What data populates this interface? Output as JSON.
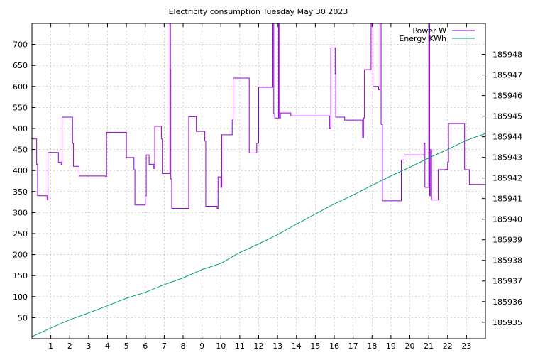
{
  "chart_data": {
    "type": "line",
    "title": "Electricity consumption Tuesday May 30 2023",
    "xlabel": "",
    "ylabel": "",
    "xlim": [
      0,
      24
    ],
    "ylim": [
      0,
      750
    ],
    "y2lim": [
      185934.2,
      185949.5
    ],
    "x_ticks": [
      1,
      2,
      3,
      4,
      5,
      6,
      7,
      8,
      9,
      10,
      11,
      12,
      13,
      14,
      15,
      16,
      17,
      18,
      19,
      20,
      21,
      22,
      23
    ],
    "y_ticks": [
      50,
      100,
      150,
      200,
      250,
      300,
      350,
      400,
      450,
      500,
      550,
      600,
      650,
      700
    ],
    "y2_ticks": [
      185935,
      185936,
      185937,
      185938,
      185939,
      185940,
      185941,
      185942,
      185943,
      185944,
      185945,
      185946,
      185947,
      185948
    ],
    "grid": true,
    "legend_position": "top-right",
    "series": [
      {
        "name": "Power W",
        "axis": "left",
        "color": "#9400d3",
        "step": true,
        "points": [
          [
            0,
            475
          ],
          [
            0.25,
            415
          ],
          [
            0.3,
            340
          ],
          [
            0.8,
            330
          ],
          [
            0.85,
            443
          ],
          [
            1.4,
            420
          ],
          [
            1.55,
            415
          ],
          [
            1.6,
            527
          ],
          [
            2.15,
            465
          ],
          [
            2.2,
            410
          ],
          [
            2.5,
            387
          ],
          [
            3.9,
            386
          ],
          [
            3.95,
            491
          ],
          [
            5.0,
            431
          ],
          [
            5.4,
            402
          ],
          [
            5.45,
            318
          ],
          [
            6.0,
            340
          ],
          [
            6.05,
            437
          ],
          [
            6.2,
            415
          ],
          [
            6.45,
            405
          ],
          [
            6.5,
            505
          ],
          [
            6.85,
            475
          ],
          [
            6.9,
            393
          ],
          [
            7.3,
            750
          ],
          [
            7.33,
            640
          ],
          [
            7.35,
            380
          ],
          [
            7.4,
            310
          ],
          [
            8.3,
            528
          ],
          [
            8.7,
            493
          ],
          [
            9.15,
            470
          ],
          [
            9.2,
            315
          ],
          [
            9.8,
            310
          ],
          [
            9.85,
            385
          ],
          [
            10.0,
            360
          ],
          [
            10.05,
            485
          ],
          [
            10.6,
            520
          ],
          [
            10.65,
            620
          ],
          [
            11.5,
            442
          ],
          [
            11.9,
            465
          ],
          [
            12.0,
            598
          ],
          [
            12.75,
            750
          ],
          [
            12.8,
            535
          ],
          [
            12.85,
            525
          ],
          [
            13.05,
            750
          ],
          [
            13.1,
            525
          ],
          [
            13.15,
            537
          ],
          [
            13.7,
            530
          ],
          [
            15.75,
            500
          ],
          [
            15.82,
            692
          ],
          [
            16.05,
            630
          ],
          [
            16.08,
            527
          ],
          [
            16.55,
            520
          ],
          [
            17.5,
            478
          ],
          [
            17.55,
            525
          ],
          [
            17.6,
            640
          ],
          [
            17.95,
            750
          ],
          [
            18.05,
            600
          ],
          [
            18.35,
            592
          ],
          [
            18.42,
            750
          ],
          [
            18.48,
            510
          ],
          [
            18.55,
            328
          ],
          [
            19.55,
            425
          ],
          [
            19.7,
            437
          ],
          [
            20.75,
            465
          ],
          [
            20.8,
            360
          ],
          [
            21.0,
            750
          ],
          [
            21.05,
            340
          ],
          [
            21.1,
            450
          ],
          [
            21.15,
            330
          ],
          [
            21.5,
            402
          ],
          [
            21.9,
            403
          ],
          [
            22.0,
            420
          ],
          [
            22.05,
            512
          ],
          [
            22.9,
            402
          ],
          [
            23.15,
            367
          ],
          [
            24,
            367
          ]
        ]
      },
      {
        "name": "Energy KWh",
        "axis": "right",
        "color": "#009e73",
        "step": false,
        "points": [
          [
            0,
            185934.3
          ],
          [
            1,
            185934.72
          ],
          [
            2,
            185935.12
          ],
          [
            3,
            185935.45
          ],
          [
            4,
            185935.8
          ],
          [
            5,
            185936.16
          ],
          [
            6,
            185936.45
          ],
          [
            7,
            185936.82
          ],
          [
            8,
            185937.15
          ],
          [
            9,
            185937.55
          ],
          [
            10,
            185937.85
          ],
          [
            11,
            185938.38
          ],
          [
            12,
            185938.8
          ],
          [
            13,
            185939.25
          ],
          [
            14,
            185939.76
          ],
          [
            15,
            185940.25
          ],
          [
            16,
            185940.74
          ],
          [
            17,
            185941.17
          ],
          [
            18,
            185941.64
          ],
          [
            19,
            185942.1
          ],
          [
            20,
            185942.52
          ],
          [
            21,
            185942.97
          ],
          [
            22,
            185943.38
          ],
          [
            23,
            185943.83
          ],
          [
            24,
            185944.15
          ]
        ]
      }
    ]
  }
}
